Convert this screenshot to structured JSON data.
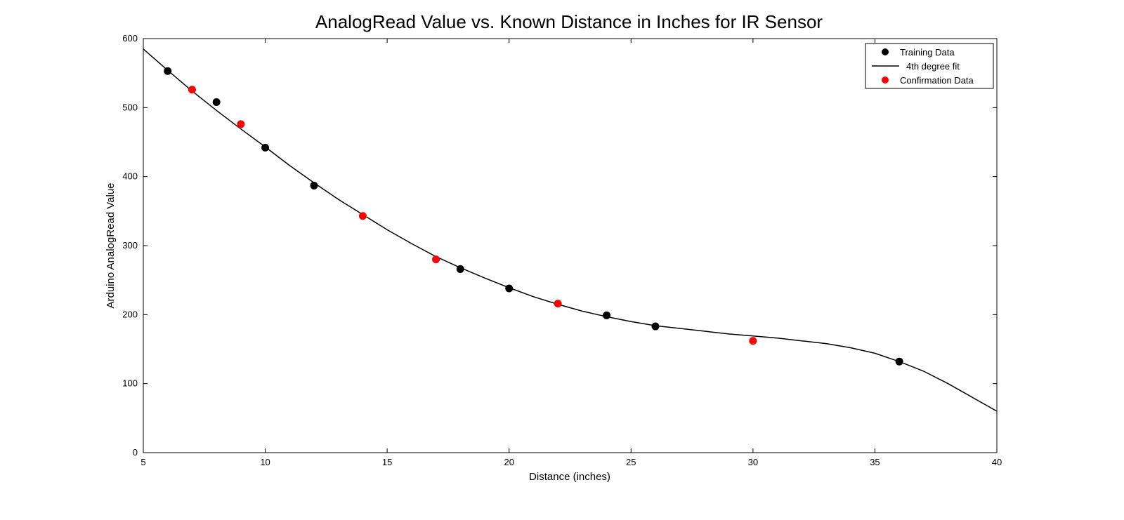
{
  "chart_data": {
    "type": "scatter",
    "title": "AnalogRead Value vs. Known Distance in Inches for IR Sensor",
    "xlabel": "Distance (inches)",
    "ylabel": "Arduino AnalogRead Value",
    "xlim": [
      5,
      40
    ],
    "ylim": [
      0,
      600
    ],
    "x_ticks": [
      5,
      10,
      15,
      20,
      25,
      30,
      35,
      40
    ],
    "x_tick_labels": [
      "5",
      "10",
      "15",
      "20",
      "25",
      "30",
      "35",
      "40"
    ],
    "y_ticks": [
      0,
      100,
      200,
      300,
      400,
      500,
      600
    ],
    "y_tick_labels": [
      "0",
      "100",
      "200",
      "300",
      "400",
      "500",
      "600"
    ],
    "grid": false,
    "legend_position": "top-right",
    "legend": [
      {
        "label": "Training Data",
        "kind": "marker",
        "color": "#000000"
      },
      {
        "label": "4th degree fit",
        "kind": "line",
        "color": "#000000"
      },
      {
        "label": "Confirmation Data",
        "kind": "marker",
        "color": "#ff0000"
      }
    ],
    "series": [
      {
        "name": "Training Data",
        "kind": "scatter",
        "color": "#000000",
        "x": [
          6,
          8,
          10,
          12,
          18,
          20,
          24,
          26,
          36
        ],
        "y": [
          553,
          508,
          442,
          387,
          266,
          238,
          199,
          183,
          132
        ]
      },
      {
        "name": "4th degree fit",
        "kind": "line",
        "color": "#000000",
        "x": [
          5,
          6,
          7,
          8,
          9,
          10,
          11,
          12,
          13,
          14,
          15,
          16,
          17,
          18,
          19,
          20,
          21,
          22,
          23,
          24,
          25,
          26,
          27,
          28,
          29,
          30,
          31,
          32,
          33,
          34,
          35,
          36,
          37,
          38,
          39,
          40
        ],
        "y": [
          585,
          554,
          524,
          496,
          469,
          443,
          416,
          391,
          367,
          345,
          323,
          303,
          284,
          268,
          253,
          239,
          226,
          215,
          205,
          197,
          190,
          184,
          180,
          176,
          172,
          169,
          166,
          162,
          158,
          152,
          144,
          132,
          118,
          100,
          80,
          60
        ]
      },
      {
        "name": "Confirmation Data",
        "kind": "scatter",
        "color": "#ff0000",
        "x": [
          7,
          9,
          14,
          17,
          22,
          30
        ],
        "y": [
          526,
          476,
          343,
          280,
          216,
          162
        ]
      }
    ]
  }
}
